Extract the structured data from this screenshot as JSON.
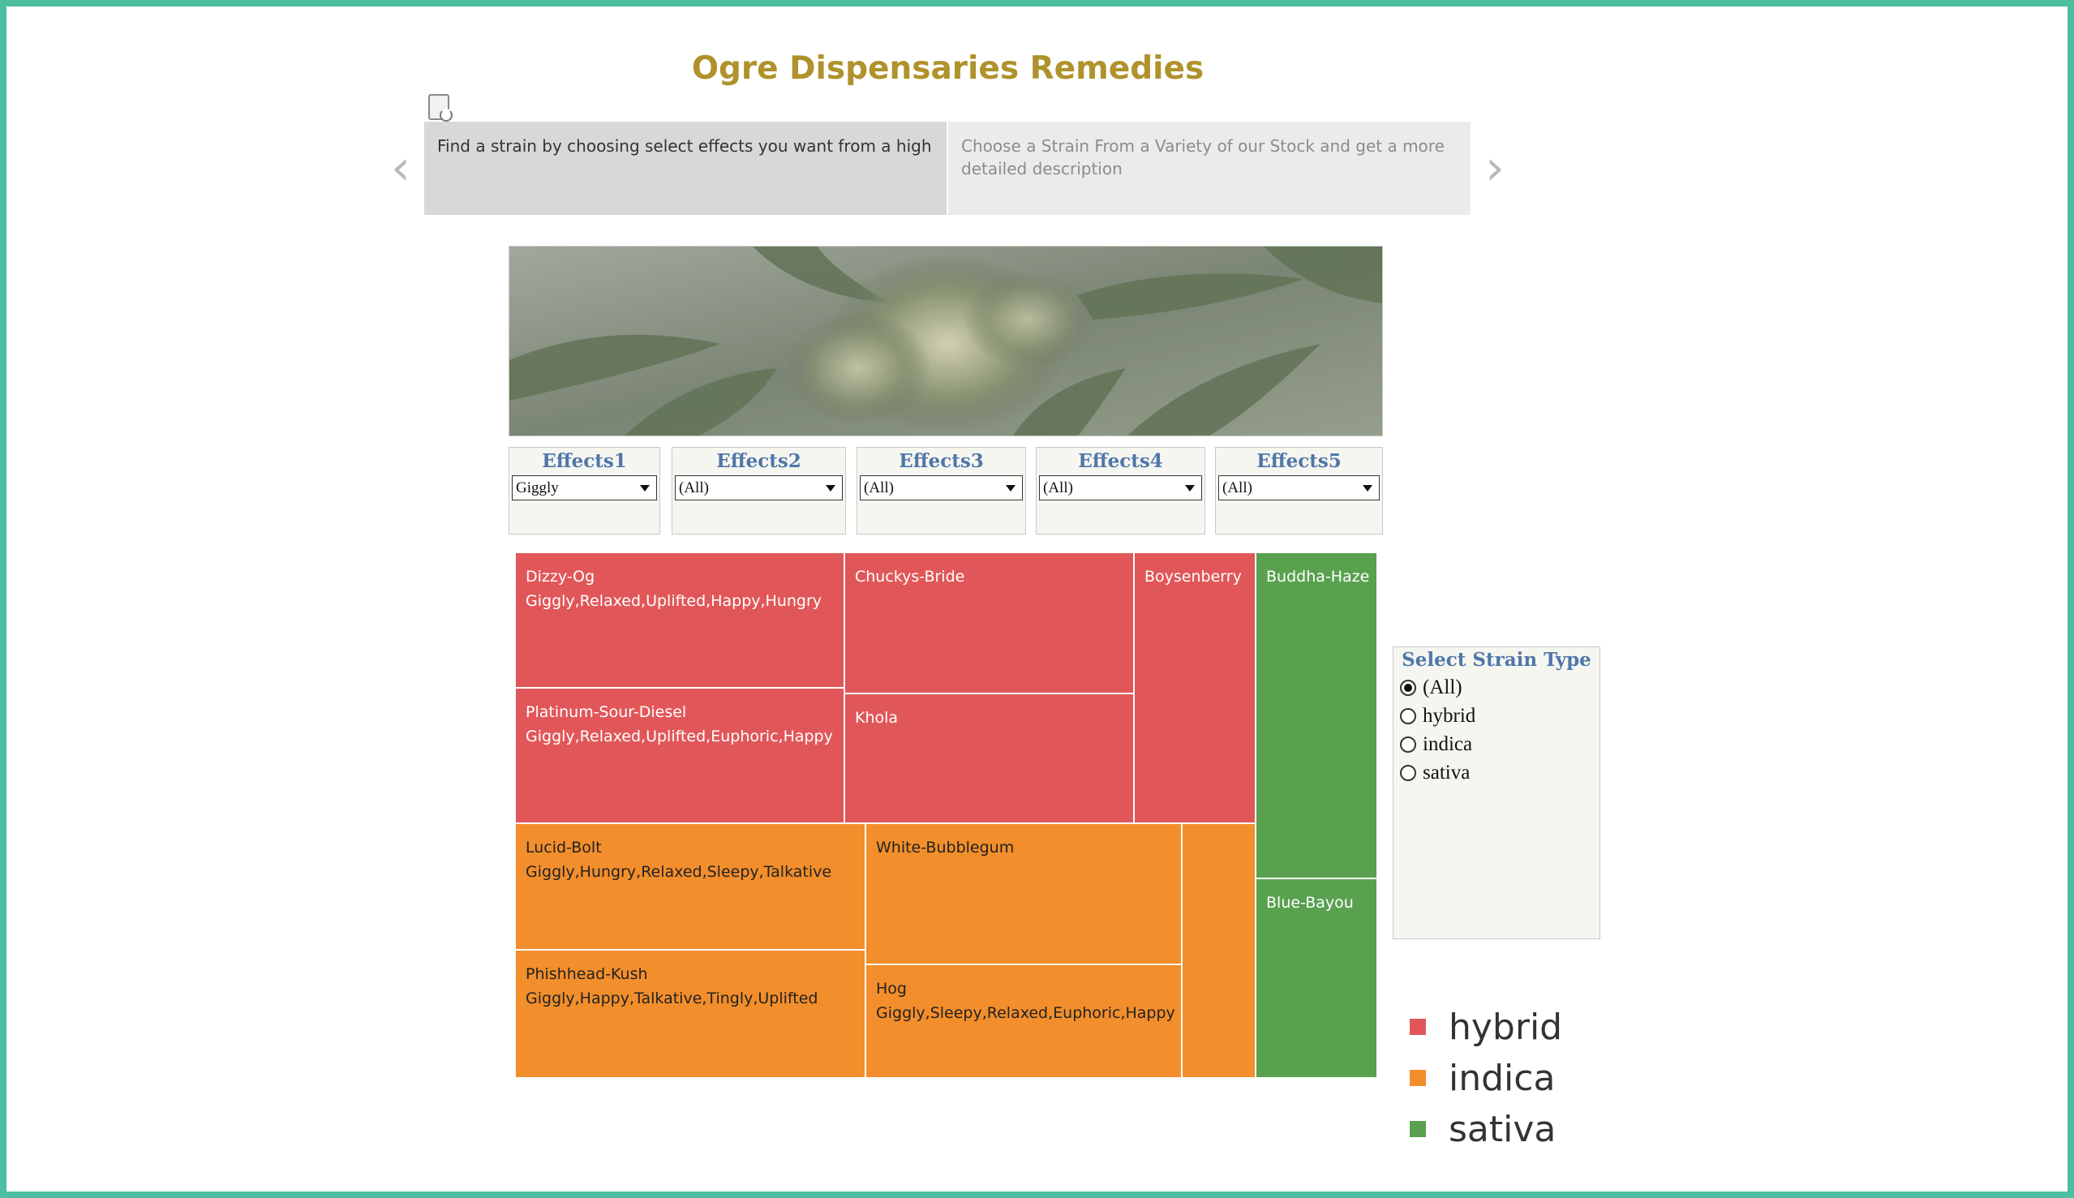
{
  "page": {
    "title": "Ogre Dispensaries Remedies"
  },
  "story": {
    "points": [
      "Find a strain by choosing select effects you want from a high",
      "Choose a Strain From a Variety of our Stock and get a more detailed description"
    ],
    "prev_arrow": "‹",
    "next_arrow": "›"
  },
  "filters": [
    {
      "label": "Effects1",
      "value": "Giggly"
    },
    {
      "label": "Effects2",
      "value": "(All)"
    },
    {
      "label": "Effects3",
      "value": "(All)"
    },
    {
      "label": "Effects4",
      "value": "(All)"
    },
    {
      "label": "Effects5",
      "value": "(All)"
    }
  ],
  "strain_type": {
    "title": "Select Strain Type",
    "options": [
      "(All)",
      "hybrid",
      "indica",
      "sativa"
    ],
    "selected": "(All)"
  },
  "legend": [
    {
      "label": "hybrid",
      "color": "#e15759"
    },
    {
      "label": "indica",
      "color": "#f28e2b"
    },
    {
      "label": "sativa",
      "color": "#59a14f"
    }
  ],
  "colors": {
    "hybrid": "#e15759",
    "indica": "#f28e2b",
    "sativa": "#59a14f",
    "frame": "#4dbfa0",
    "title": "#b0922c"
  },
  "treemap": {
    "cells": [
      {
        "name": "Dizzy-Og",
        "effects": "Giggly,Relaxed,Uplifted,Happy,Hungry",
        "type": "hybrid"
      },
      {
        "name": "Platinum-Sour-Diesel",
        "effects": "Giggly,Relaxed,Uplifted,Euphoric,Happy",
        "type": "hybrid"
      },
      {
        "name": "Chuckys-Bride",
        "effects": "",
        "type": "hybrid"
      },
      {
        "name": "Khola",
        "effects": "",
        "type": "hybrid"
      },
      {
        "name": "Boysenberry",
        "effects": "",
        "type": "hybrid"
      },
      {
        "name": "Lucid-Bolt",
        "effects": "Giggly,Hungry,Relaxed,Sleepy,Talkative",
        "type": "indica"
      },
      {
        "name": "Phishhead-Kush",
        "effects": "Giggly,Happy,Talkative,Tingly,Uplifted",
        "type": "indica"
      },
      {
        "name": "White-Bubblegum",
        "effects": "",
        "type": "indica"
      },
      {
        "name": "Hog",
        "effects": "Giggly,Sleepy,Relaxed,Euphoric,Happy",
        "type": "indica"
      },
      {
        "name": "",
        "effects": "",
        "type": "indica"
      },
      {
        "name": "Buddha-Haze",
        "effects": "",
        "type": "sativa"
      },
      {
        "name": "Blue-Bayou",
        "effects": "",
        "type": "sativa"
      }
    ]
  }
}
